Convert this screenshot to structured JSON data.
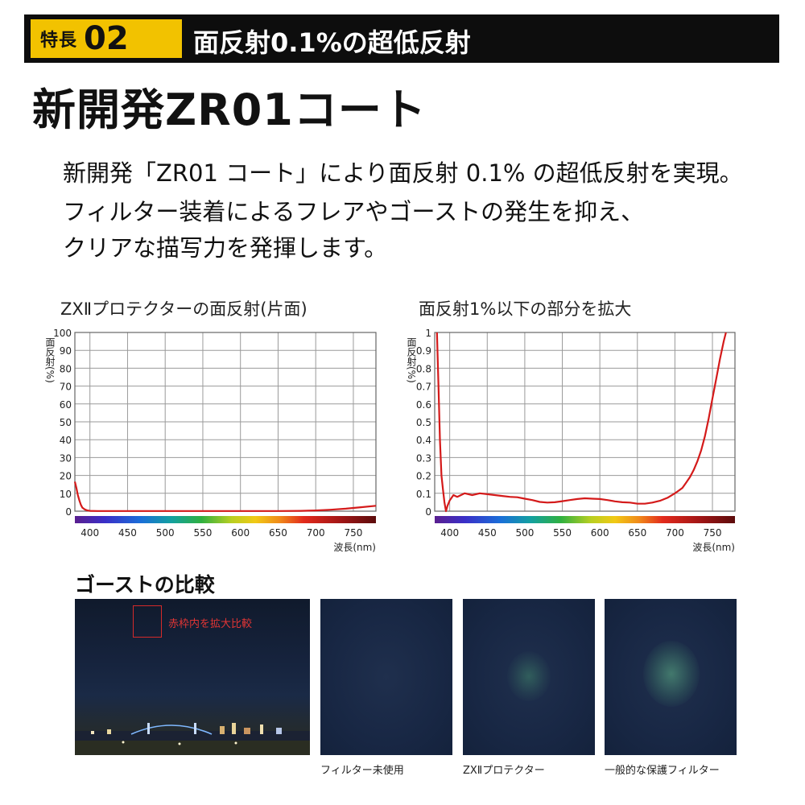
{
  "header": {
    "tag_label": "特長",
    "tag_number": "02",
    "title": "面反射0.1%の超低反射",
    "tag_color": "#f2c200",
    "bar_color": "#0d0d0d"
  },
  "headline": "新開発ZR01コート",
  "lead": {
    "line1": "新開発「ZR01 コート」により面反射 0.1% の超低反射を実現。",
    "line2": "フィルター装着によるフレアやゴーストの発生を抑え、",
    "line3": "クリアな描写力を発揮します。"
  },
  "chart_data": [
    {
      "type": "line",
      "title": "ZXⅡプロテクターの面反射(片面)",
      "ylabel": "面反射(%)",
      "xlabel": "波長(nm)",
      "xlim": [
        380,
        780
      ],
      "ylim": [
        0,
        100
      ],
      "yticks": [
        "0",
        "10",
        "20",
        "30",
        "40",
        "50",
        "60",
        "70",
        "80",
        "90",
        "100"
      ],
      "xticks": [
        "400",
        "450",
        "500",
        "550",
        "600",
        "650",
        "700",
        "750"
      ],
      "grid": true,
      "line_color": "#d41a1a",
      "series": [
        {
          "x": [
            380,
            382,
            384,
            386,
            388,
            390,
            393,
            396,
            400,
            410,
            430,
            460,
            500,
            550,
            600,
            650,
            680,
            700,
            720,
            740,
            760,
            780
          ],
          "y": [
            16.5,
            13,
            9,
            6,
            3.5,
            2,
            1,
            0.5,
            0.2,
            0.1,
            0.1,
            0.1,
            0.08,
            0.07,
            0.07,
            0.1,
            0.2,
            0.4,
            0.8,
            1.4,
            2.2,
            3.0
          ]
        }
      ]
    },
    {
      "type": "line",
      "title": "面反射1%以下の部分を拡大",
      "ylabel": "面反射(%)",
      "xlabel": "波長(nm)",
      "xlim": [
        380,
        780
      ],
      "ylim": [
        0,
        1
      ],
      "yticks": [
        "0",
        "0.1",
        "0.2",
        "0.3",
        "0.4",
        "0.5",
        "0.6",
        "0.7",
        "0.8",
        "0.9",
        "1"
      ],
      "xticks": [
        "400",
        "450",
        "500",
        "550",
        "600",
        "650",
        "700",
        "750"
      ],
      "grid": true,
      "line_color": "#d41a1a",
      "series": [
        {
          "x": [
            383,
            385,
            387,
            389,
            391,
            393,
            395,
            397,
            400,
            405,
            410,
            420,
            430,
            440,
            450,
            460,
            470,
            480,
            490,
            500,
            510,
            520,
            530,
            540,
            550,
            560,
            570,
            580,
            590,
            600,
            610,
            620,
            630,
            640,
            650,
            660,
            670,
            680,
            690,
            700,
            705,
            710,
            715,
            720,
            725,
            730,
            735,
            740,
            745,
            750,
            755,
            760,
            765,
            768
          ],
          "y": [
            1.0,
            0.7,
            0.4,
            0.2,
            0.12,
            0.05,
            0.0,
            0.03,
            0.06,
            0.09,
            0.08,
            0.1,
            0.09,
            0.1,
            0.095,
            0.09,
            0.085,
            0.08,
            0.078,
            0.07,
            0.062,
            0.052,
            0.048,
            0.05,
            0.056,
            0.062,
            0.068,
            0.072,
            0.07,
            0.068,
            0.062,
            0.055,
            0.05,
            0.048,
            0.042,
            0.042,
            0.048,
            0.058,
            0.075,
            0.1,
            0.115,
            0.13,
            0.16,
            0.19,
            0.23,
            0.28,
            0.34,
            0.42,
            0.52,
            0.63,
            0.74,
            0.85,
            0.95,
            1.0
          ]
        }
      ]
    }
  ],
  "section": {
    "title": "ゴーストの比較",
    "overlay_label": "赤枠内を拡大比較",
    "captions": [
      "フィルター未使用",
      "ZXⅡプロテクター",
      "一般的な保護フィルター"
    ]
  }
}
